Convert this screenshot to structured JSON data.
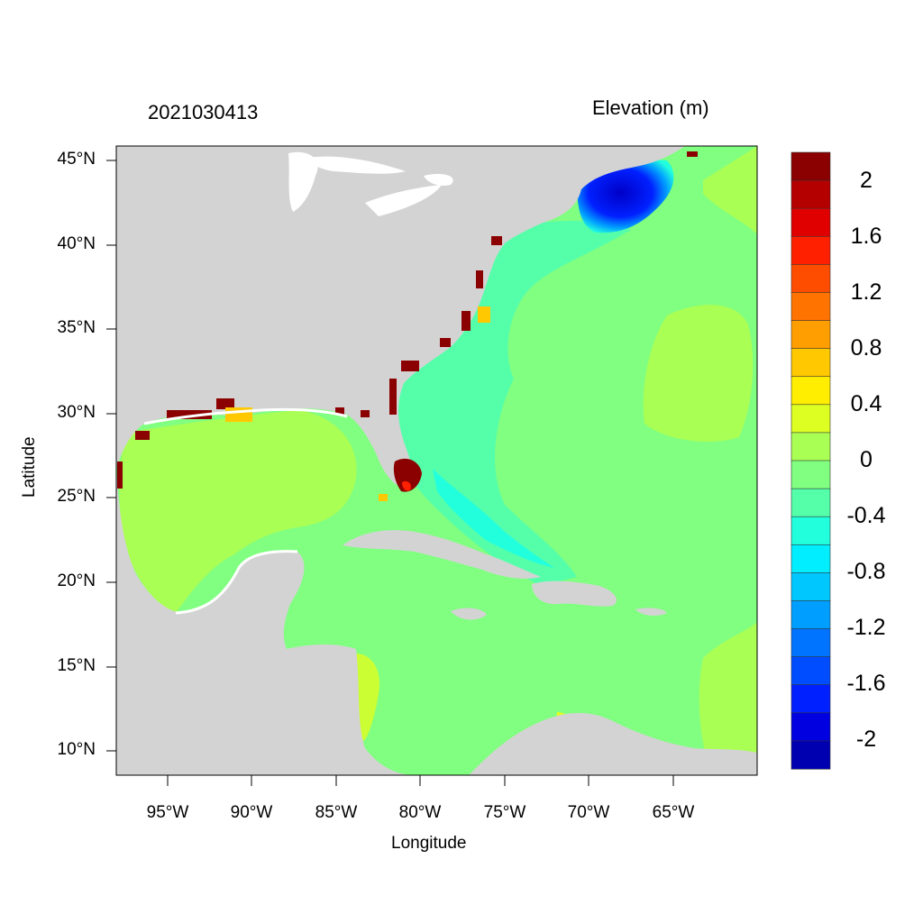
{
  "titles": {
    "left": "2021030413",
    "right": "Elevation (m)"
  },
  "axes": {
    "xlabel": "Longitude",
    "ylabel": "Latitude",
    "x_ticks": [
      "95°W",
      "90°W",
      "85°W",
      "80°W",
      "75°W",
      "70°W",
      "65°W"
    ],
    "y_ticks": [
      "45°N",
      "40°N",
      "35°N",
      "30°N",
      "25°N",
      "20°N",
      "15°N",
      "10°N"
    ]
  },
  "colorbar": {
    "labels": [
      "2",
      "1.6",
      "1.2",
      "0.8",
      "0.4",
      "0",
      "-0.4",
      "-0.8",
      "-1.2",
      "-1.6",
      "-2"
    ],
    "colors": [
      "#8b0000",
      "#b50000",
      "#e00000",
      "#ff2000",
      "#ff4d00",
      "#ff7300",
      "#ff9e00",
      "#ffc800",
      "#ffee00",
      "#ddff22",
      "#aaff55",
      "#80ff80",
      "#55ffaa",
      "#22ffdd",
      "#00eeff",
      "#00c8ff",
      "#009eff",
      "#0073ff",
      "#004dff",
      "#0020ff",
      "#0000e0",
      "#0000b0"
    ]
  },
  "colors": {
    "land": "#d3d3d3",
    "ocean_base": "#80ff80",
    "gulf_positive": "#aaff55",
    "shelf_negative": "#55ffaa",
    "surge_high": "#8b0000",
    "setdown_low": "#0000c8"
  }
}
